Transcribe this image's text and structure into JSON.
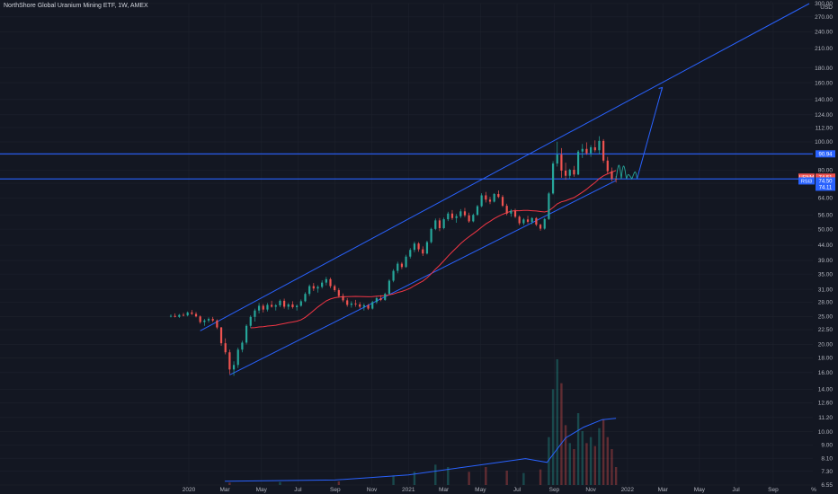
{
  "header": {
    "title": "NorthShore Global Uranium Mining ETF, 1W, AMEX"
  },
  "colors": {
    "background": "#131722",
    "grid": "#1e222d",
    "up": "#26a69a",
    "down": "#ef5350",
    "drawing": "#2962ff",
    "ma": "#f23645",
    "volume_ma": "#2962ff",
    "scribble": "#26a69a"
  },
  "axis": {
    "currency": "USD",
    "percent_label": "%",
    "y_labels": [
      "300.00",
      "270.00",
      "240.00",
      "210.00",
      "180.00",
      "160.00",
      "140.00",
      "124.00",
      "112.00",
      "100.00",
      "90.00",
      "80.00",
      "72.00",
      "64.00",
      "56.00",
      "50.00",
      "44.00",
      "39.00",
      "35.00",
      "31.00",
      "28.00",
      "25.00",
      "22.50",
      "20.00",
      "18.00",
      "16.00",
      "14.00",
      "12.60",
      "11.20",
      "10.00",
      "9.00",
      "8.10",
      "7.30",
      "6.55"
    ],
    "x_labels": [
      "2020",
      "Mar",
      "May",
      "Jul",
      "Sep",
      "Nov",
      "2021",
      "Mar",
      "May",
      "Jul",
      "Sep",
      "Nov",
      "2022",
      "Mar",
      "May",
      "Jul",
      "Sep",
      "%"
    ]
  },
  "price_tags": [
    {
      "label": "",
      "value": "90.94",
      "color": "#2962ff"
    },
    {
      "label": "URNM",
      "value": "74.51",
      "color": "#ef5350"
    },
    {
      "label": "",
      "value": "37:12",
      "color": "#ef5350"
    },
    {
      "label": "RSI3",
      "value": "74.50",
      "color": "#2962ff"
    },
    {
      "label": "",
      "value": "74.11",
      "color": "#2962ff"
    }
  ],
  "chart_data": {
    "type": "candlestick",
    "title": "NorthShore Global Uranium Mining ETF, 1W, AMEX",
    "scale": "log",
    "ylim": [
      6.55,
      300
    ],
    "x_start": "2019-12-02",
    "x_end": "2022-10-31",
    "candles": [
      {
        "date": "2019-12-02",
        "o": 25.0,
        "h": 25.4,
        "l": 24.8,
        "c": 25.1
      },
      {
        "date": "2019-12-09",
        "o": 25.1,
        "h": 25.6,
        "l": 24.8,
        "c": 24.9
      },
      {
        "date": "2019-12-16",
        "o": 24.9,
        "h": 25.5,
        "l": 24.7,
        "c": 25.3
      },
      {
        "date": "2019-12-23",
        "o": 25.3,
        "h": 25.7,
        "l": 25.0,
        "c": 25.2
      },
      {
        "date": "2019-12-30",
        "o": 25.2,
        "h": 26.0,
        "l": 25.0,
        "c": 25.8
      },
      {
        "date": "2020-01-06",
        "o": 25.8,
        "h": 26.3,
        "l": 25.3,
        "c": 25.5
      },
      {
        "date": "2020-01-13",
        "o": 25.5,
        "h": 25.9,
        "l": 24.8,
        "c": 25.0
      },
      {
        "date": "2020-01-20",
        "o": 25.0,
        "h": 25.2,
        "l": 23.6,
        "c": 23.9
      },
      {
        "date": "2020-01-27",
        "o": 23.9,
        "h": 24.5,
        "l": 23.2,
        "c": 24.2
      },
      {
        "date": "2020-02-03",
        "o": 24.2,
        "h": 24.8,
        "l": 23.8,
        "c": 24.5
      },
      {
        "date": "2020-02-10",
        "o": 24.5,
        "h": 24.9,
        "l": 23.9,
        "c": 24.2
      },
      {
        "date": "2020-02-17",
        "o": 24.2,
        "h": 24.4,
        "l": 22.6,
        "c": 22.9
      },
      {
        "date": "2020-02-24",
        "o": 22.9,
        "h": 23.0,
        "l": 19.8,
        "c": 20.2
      },
      {
        "date": "2020-03-02",
        "o": 20.2,
        "h": 21.0,
        "l": 18.5,
        "c": 18.8
      },
      {
        "date": "2020-03-09",
        "o": 18.8,
        "h": 19.2,
        "l": 15.8,
        "c": 16.4
      },
      {
        "date": "2020-03-16",
        "o": 16.4,
        "h": 17.5,
        "l": 15.6,
        "c": 17.0
      },
      {
        "date": "2020-03-23",
        "o": 17.0,
        "h": 19.5,
        "l": 16.6,
        "c": 19.2
      },
      {
        "date": "2020-03-30",
        "o": 19.2,
        "h": 20.6,
        "l": 18.8,
        "c": 20.3
      },
      {
        "date": "2020-04-06",
        "o": 20.3,
        "h": 23.5,
        "l": 20.0,
        "c": 23.2
      },
      {
        "date": "2020-04-13",
        "o": 23.2,
        "h": 25.2,
        "l": 22.8,
        "c": 24.9
      },
      {
        "date": "2020-04-20",
        "o": 24.9,
        "h": 26.6,
        "l": 24.0,
        "c": 26.2
      },
      {
        "date": "2020-04-27",
        "o": 26.2,
        "h": 27.8,
        "l": 25.6,
        "c": 27.2
      },
      {
        "date": "2020-05-04",
        "o": 27.2,
        "h": 27.6,
        "l": 25.8,
        "c": 26.4
      },
      {
        "date": "2020-05-11",
        "o": 26.4,
        "h": 27.8,
        "l": 26.0,
        "c": 27.4
      },
      {
        "date": "2020-05-18",
        "o": 27.4,
        "h": 28.3,
        "l": 26.8,
        "c": 27.0
      },
      {
        "date": "2020-05-25",
        "o": 27.0,
        "h": 27.6,
        "l": 26.2,
        "c": 27.3
      },
      {
        "date": "2020-06-01",
        "o": 27.3,
        "h": 28.6,
        "l": 26.9,
        "c": 28.3
      },
      {
        "date": "2020-06-08",
        "o": 28.3,
        "h": 28.8,
        "l": 26.6,
        "c": 27.0
      },
      {
        "date": "2020-06-15",
        "o": 27.0,
        "h": 27.8,
        "l": 26.4,
        "c": 27.5
      },
      {
        "date": "2020-06-22",
        "o": 27.5,
        "h": 28.2,
        "l": 26.6,
        "c": 26.9
      },
      {
        "date": "2020-06-29",
        "o": 26.9,
        "h": 27.5,
        "l": 26.2,
        "c": 27.2
      },
      {
        "date": "2020-07-06",
        "o": 27.2,
        "h": 28.6,
        "l": 27.0,
        "c": 28.2
      },
      {
        "date": "2020-07-13",
        "o": 28.2,
        "h": 30.3,
        "l": 28.0,
        "c": 29.9
      },
      {
        "date": "2020-07-20",
        "o": 29.9,
        "h": 32.2,
        "l": 29.4,
        "c": 31.8
      },
      {
        "date": "2020-07-27",
        "o": 31.8,
        "h": 32.6,
        "l": 30.6,
        "c": 31.2
      },
      {
        "date": "2020-08-03",
        "o": 31.2,
        "h": 32.0,
        "l": 30.2,
        "c": 31.6
      },
      {
        "date": "2020-08-10",
        "o": 31.6,
        "h": 33.3,
        "l": 31.2,
        "c": 32.7
      },
      {
        "date": "2020-08-17",
        "o": 32.7,
        "h": 34.2,
        "l": 32.0,
        "c": 33.6
      },
      {
        "date": "2020-08-24",
        "o": 33.6,
        "h": 34.0,
        "l": 31.3,
        "c": 31.8
      },
      {
        "date": "2020-08-31",
        "o": 31.8,
        "h": 32.2,
        "l": 30.4,
        "c": 30.8
      },
      {
        "date": "2020-09-07",
        "o": 30.8,
        "h": 31.3,
        "l": 29.0,
        "c": 29.4
      },
      {
        "date": "2020-09-14",
        "o": 29.4,
        "h": 30.0,
        "l": 28.0,
        "c": 28.4
      },
      {
        "date": "2020-09-21",
        "o": 28.4,
        "h": 28.9,
        "l": 27.0,
        "c": 27.4
      },
      {
        "date": "2020-09-28",
        "o": 27.4,
        "h": 28.2,
        "l": 26.8,
        "c": 27.7
      },
      {
        "date": "2020-10-05",
        "o": 27.7,
        "h": 28.5,
        "l": 27.0,
        "c": 27.5
      },
      {
        "date": "2020-10-12",
        "o": 27.5,
        "h": 28.0,
        "l": 26.6,
        "c": 27.0
      },
      {
        "date": "2020-10-19",
        "o": 27.0,
        "h": 27.7,
        "l": 26.2,
        "c": 27.3
      },
      {
        "date": "2020-10-26",
        "o": 27.3,
        "h": 27.6,
        "l": 26.3,
        "c": 26.6
      },
      {
        "date": "2020-11-02",
        "o": 26.6,
        "h": 28.3,
        "l": 26.4,
        "c": 28.0
      },
      {
        "date": "2020-11-09",
        "o": 28.0,
        "h": 29.2,
        "l": 27.6,
        "c": 28.9
      },
      {
        "date": "2020-11-16",
        "o": 28.9,
        "h": 29.6,
        "l": 28.2,
        "c": 28.5
      },
      {
        "date": "2020-11-23",
        "o": 28.5,
        "h": 30.2,
        "l": 28.3,
        "c": 29.9
      },
      {
        "date": "2020-11-30",
        "o": 29.9,
        "h": 33.6,
        "l": 29.7,
        "c": 33.2
      },
      {
        "date": "2020-12-07",
        "o": 33.2,
        "h": 36.4,
        "l": 32.8,
        "c": 35.9
      },
      {
        "date": "2020-12-14",
        "o": 35.9,
        "h": 38.6,
        "l": 35.2,
        "c": 38.0
      },
      {
        "date": "2020-12-21",
        "o": 38.0,
        "h": 38.5,
        "l": 36.4,
        "c": 37.0
      },
      {
        "date": "2020-12-28",
        "o": 37.0,
        "h": 40.8,
        "l": 36.8,
        "c": 40.2
      },
      {
        "date": "2021-01-04",
        "o": 40.2,
        "h": 43.0,
        "l": 39.6,
        "c": 42.4
      },
      {
        "date": "2021-01-11",
        "o": 42.4,
        "h": 45.3,
        "l": 41.6,
        "c": 44.6
      },
      {
        "date": "2021-01-18",
        "o": 44.6,
        "h": 45.1,
        "l": 41.8,
        "c": 42.6
      },
      {
        "date": "2021-01-25",
        "o": 42.6,
        "h": 43.6,
        "l": 40.4,
        "c": 41.2
      },
      {
        "date": "2021-02-01",
        "o": 41.2,
        "h": 45.6,
        "l": 40.9,
        "c": 45.1
      },
      {
        "date": "2021-02-08",
        "o": 45.1,
        "h": 50.6,
        "l": 44.6,
        "c": 50.1
      },
      {
        "date": "2021-02-15",
        "o": 50.1,
        "h": 54.4,
        "l": 49.6,
        "c": 53.6
      },
      {
        "date": "2021-02-22",
        "o": 53.6,
        "h": 54.6,
        "l": 49.2,
        "c": 50.4
      },
      {
        "date": "2021-03-01",
        "o": 50.4,
        "h": 54.8,
        "l": 49.9,
        "c": 54.1
      },
      {
        "date": "2021-03-08",
        "o": 54.1,
        "h": 57.4,
        "l": 53.3,
        "c": 56.6
      },
      {
        "date": "2021-03-15",
        "o": 56.6,
        "h": 58.2,
        "l": 53.8,
        "c": 54.6
      },
      {
        "date": "2021-03-22",
        "o": 54.6,
        "h": 56.4,
        "l": 52.6,
        "c": 55.4
      },
      {
        "date": "2021-03-29",
        "o": 55.4,
        "h": 58.6,
        "l": 54.6,
        "c": 57.6
      },
      {
        "date": "2021-04-05",
        "o": 57.6,
        "h": 59.2,
        "l": 55.0,
        "c": 55.8
      },
      {
        "date": "2021-04-12",
        "o": 55.8,
        "h": 57.0,
        "l": 52.6,
        "c": 53.2
      },
      {
        "date": "2021-04-19",
        "o": 53.2,
        "h": 56.6,
        "l": 52.8,
        "c": 56.0
      },
      {
        "date": "2021-04-26",
        "o": 56.0,
        "h": 60.6,
        "l": 55.6,
        "c": 60.0
      },
      {
        "date": "2021-05-03",
        "o": 60.0,
        "h": 66.5,
        "l": 59.5,
        "c": 65.4
      },
      {
        "date": "2021-05-10",
        "o": 65.4,
        "h": 67.2,
        "l": 61.8,
        "c": 63.2
      },
      {
        "date": "2021-05-17",
        "o": 63.2,
        "h": 64.6,
        "l": 61.0,
        "c": 62.2
      },
      {
        "date": "2021-05-24",
        "o": 62.2,
        "h": 66.6,
        "l": 61.8,
        "c": 66.1
      },
      {
        "date": "2021-05-31",
        "o": 66.1,
        "h": 68.0,
        "l": 64.0,
        "c": 64.6
      },
      {
        "date": "2021-06-07",
        "o": 64.6,
        "h": 65.6,
        "l": 59.6,
        "c": 60.2
      },
      {
        "date": "2021-06-14",
        "o": 60.2,
        "h": 61.2,
        "l": 55.8,
        "c": 56.6
      },
      {
        "date": "2021-06-21",
        "o": 56.6,
        "h": 58.6,
        "l": 55.2,
        "c": 57.9
      },
      {
        "date": "2021-06-28",
        "o": 57.9,
        "h": 58.8,
        "l": 54.6,
        "c": 55.2
      },
      {
        "date": "2021-07-05",
        "o": 55.2,
        "h": 55.8,
        "l": 51.6,
        "c": 52.4
      },
      {
        "date": "2021-07-12",
        "o": 52.4,
        "h": 54.6,
        "l": 51.6,
        "c": 54.0
      },
      {
        "date": "2021-07-19",
        "o": 54.0,
        "h": 55.6,
        "l": 52.2,
        "c": 53.0
      },
      {
        "date": "2021-07-26",
        "o": 53.0,
        "h": 55.0,
        "l": 52.0,
        "c": 54.6
      },
      {
        "date": "2021-08-02",
        "o": 54.6,
        "h": 55.0,
        "l": 51.2,
        "c": 51.8
      },
      {
        "date": "2021-08-09",
        "o": 51.8,
        "h": 52.2,
        "l": 49.4,
        "c": 50.2
      },
      {
        "date": "2021-08-16",
        "o": 50.2,
        "h": 54.6,
        "l": 49.8,
        "c": 54.2
      },
      {
        "date": "2021-08-23",
        "o": 54.2,
        "h": 67.2,
        "l": 53.8,
        "c": 66.4
      },
      {
        "date": "2021-08-30",
        "o": 66.4,
        "h": 85.8,
        "l": 65.8,
        "c": 84.2
      },
      {
        "date": "2021-09-06",
        "o": 84.2,
        "h": 100.2,
        "l": 82.2,
        "c": 90.4
      },
      {
        "date": "2021-09-13",
        "o": 90.4,
        "h": 95.2,
        "l": 75.2,
        "c": 79.6
      },
      {
        "date": "2021-09-20",
        "o": 79.6,
        "h": 84.8,
        "l": 74.0,
        "c": 76.4
      },
      {
        "date": "2021-09-27",
        "o": 76.4,
        "h": 80.8,
        "l": 74.6,
        "c": 80.1
      },
      {
        "date": "2021-10-04",
        "o": 80.1,
        "h": 82.6,
        "l": 75.8,
        "c": 77.2
      },
      {
        "date": "2021-10-11",
        "o": 77.2,
        "h": 93.8,
        "l": 76.8,
        "c": 92.6
      },
      {
        "date": "2021-10-18",
        "o": 92.6,
        "h": 98.4,
        "l": 88.0,
        "c": 94.6
      },
      {
        "date": "2021-10-25",
        "o": 94.6,
        "h": 99.6,
        "l": 90.2,
        "c": 91.4
      },
      {
        "date": "2021-11-01",
        "o": 91.4,
        "h": 97.4,
        "l": 88.8,
        "c": 95.8
      },
      {
        "date": "2021-11-08",
        "o": 95.8,
        "h": 101.2,
        "l": 92.2,
        "c": 93.6
      },
      {
        "date": "2021-11-15",
        "o": 93.6,
        "h": 104.6,
        "l": 90.6,
        "c": 100.8
      },
      {
        "date": "2021-11-22",
        "o": 100.8,
        "h": 102.2,
        "l": 84.6,
        "c": 86.2
      },
      {
        "date": "2021-11-29",
        "o": 86.2,
        "h": 88.8,
        "l": 77.6,
        "c": 79.2
      },
      {
        "date": "2021-12-06",
        "o": 79.2,
        "h": 81.6,
        "l": 73.2,
        "c": 74.6
      },
      {
        "date": "2021-12-13",
        "o": 74.6,
        "h": 76.2,
        "l": 72.4,
        "c": 74.51
      }
    ],
    "volume": [
      {
        "date": "2020-03-09",
        "v": 0.4
      },
      {
        "date": "2020-06-01",
        "v": 0.5
      },
      {
        "date": "2020-09-07",
        "v": 0.6
      },
      {
        "date": "2020-12-07",
        "v": 1.6
      },
      {
        "date": "2021-01-11",
        "v": 2.2
      },
      {
        "date": "2021-02-15",
        "v": 3.4
      },
      {
        "date": "2021-03-08",
        "v": 3.0
      },
      {
        "date": "2021-04-12",
        "v": 2.2
      },
      {
        "date": "2021-05-10",
        "v": 3.0
      },
      {
        "date": "2021-06-14",
        "v": 2.4
      },
      {
        "date": "2021-07-12",
        "v": 2.0
      },
      {
        "date": "2021-08-09",
        "v": 2.6
      },
      {
        "date": "2021-08-23",
        "v": 8.0
      },
      {
        "date": "2021-08-30",
        "v": 16.0
      },
      {
        "date": "2021-09-06",
        "v": 21.0
      },
      {
        "date": "2021-09-13",
        "v": 17.0
      },
      {
        "date": "2021-09-20",
        "v": 10.0
      },
      {
        "date": "2021-09-27",
        "v": 7.0
      },
      {
        "date": "2021-10-04",
        "v": 6.0
      },
      {
        "date": "2021-10-11",
        "v": 12.0
      },
      {
        "date": "2021-10-18",
        "v": 9.0
      },
      {
        "date": "2021-10-25",
        "v": 7.0
      },
      {
        "date": "2021-11-01",
        "v": 8.0
      },
      {
        "date": "2021-11-08",
        "v": 6.5
      },
      {
        "date": "2021-11-15",
        "v": 9.5
      },
      {
        "date": "2021-11-22",
        "v": 11.0
      },
      {
        "date": "2021-11-29",
        "v": 8.0
      },
      {
        "date": "2021-12-06",
        "v": 6.0
      },
      {
        "date": "2021-12-13",
        "v": 3.0
      }
    ],
    "ma_period": 20,
    "horizontal_lines": [
      90.94,
      74.51
    ],
    "channel": {
      "upper": [
        [
          "2020-01-20",
          22.3
        ],
        [
          "2022-10-31",
          300
        ]
      ],
      "lower": [
        [
          "2020-03-09",
          15.7
        ],
        [
          "2021-12-13",
          73.6
        ]
      ]
    },
    "projection": [
      [
        "2022-01-17",
        74.51
      ],
      [
        "2022-02-28",
        154
      ]
    ]
  }
}
